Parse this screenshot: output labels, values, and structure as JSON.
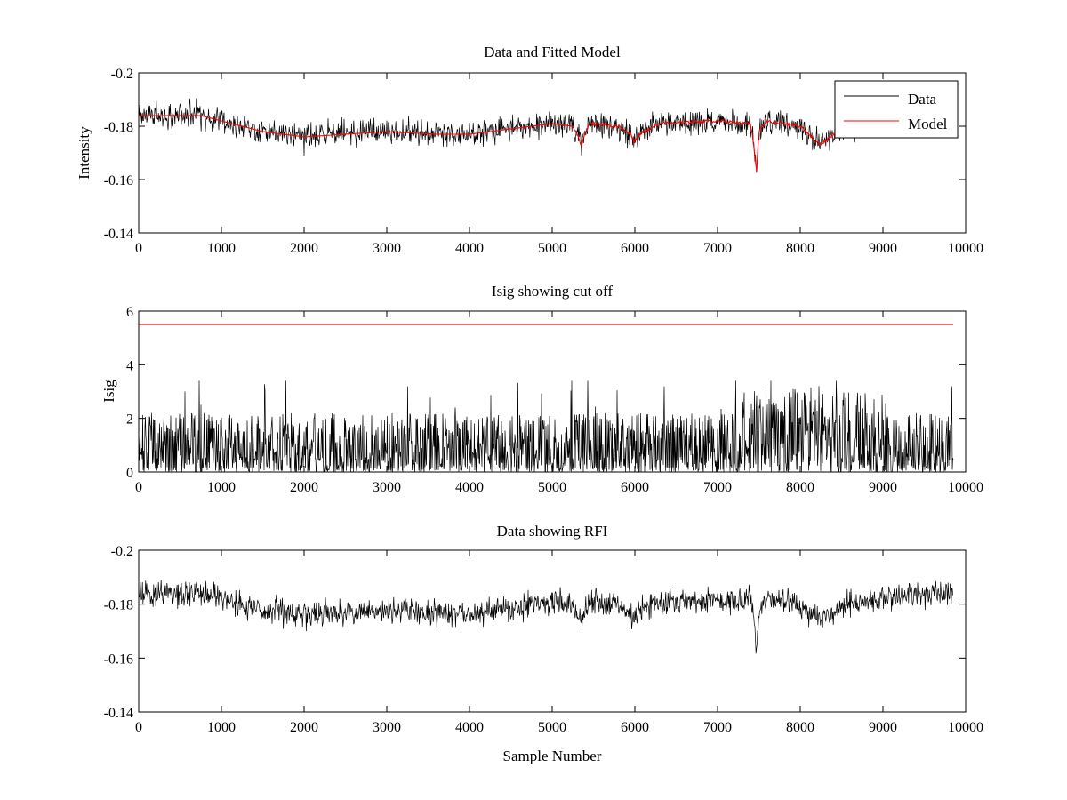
{
  "colors": {
    "data": "#000000",
    "model": "#ff0000",
    "background": "#ffffff",
    "axis": "#000000"
  },
  "chart_data": [
    {
      "type": "line",
      "title": "Data and Fitted Model",
      "xlabel": "",
      "ylabel": "Intensity",
      "xlim": [
        0,
        10000
      ],
      "ylim": [
        -0.2,
        -0.14
      ],
      "y_reversed": true,
      "xticks": [
        "0",
        "1000",
        "2000",
        "3000",
        "4000",
        "5000",
        "6000",
        "7000",
        "8000",
        "9000",
        "10000"
      ],
      "yticks": [
        "-0.14",
        "-0.16",
        "-0.18",
        "-0.2"
      ],
      "grid": false,
      "legend": {
        "placement": "top-right",
        "entries": [
          "Data",
          "Model"
        ]
      },
      "series": [
        {
          "name": "Data",
          "kind": "noisy",
          "noise_halfwidth": 0.0045,
          "x": [
            0,
            300,
            750,
            1000,
            1500,
            2000,
            2500,
            3000,
            3600,
            4000,
            4500,
            5000,
            5250,
            5320,
            5350,
            5380,
            5450,
            5800,
            5950,
            5990,
            6050,
            6300,
            7000,
            7400,
            7450,
            7470,
            7500,
            7600,
            8000,
            8100,
            8200,
            8250,
            8400,
            8600,
            9000,
            9500,
            9850
          ],
          "y": [
            -0.184,
            -0.184,
            -0.184,
            -0.182,
            -0.178,
            -0.176,
            -0.177,
            -0.178,
            -0.177,
            -0.177,
            -0.179,
            -0.181,
            -0.18,
            -0.176,
            -0.172,
            -0.176,
            -0.181,
            -0.18,
            -0.177,
            -0.174,
            -0.177,
            -0.181,
            -0.182,
            -0.181,
            -0.17,
            -0.162,
            -0.178,
            -0.182,
            -0.18,
            -0.177,
            -0.174,
            -0.173,
            -0.177,
            -0.18,
            -0.182,
            -0.184,
            -0.184
          ]
        },
        {
          "name": "Model",
          "kind": "smooth",
          "x": [
            0,
            300,
            750,
            1000,
            1500,
            2000,
            2500,
            3000,
            3600,
            4000,
            4500,
            5000,
            5250,
            5320,
            5350,
            5380,
            5450,
            5800,
            5950,
            5990,
            6050,
            6300,
            7000,
            7400,
            7450,
            7470,
            7500,
            7600,
            8000,
            8100,
            8200,
            8250,
            8400,
            8600,
            9000,
            9500,
            9850
          ],
          "y": [
            -0.184,
            -0.184,
            -0.184,
            -0.182,
            -0.178,
            -0.176,
            -0.177,
            -0.178,
            -0.177,
            -0.177,
            -0.179,
            -0.181,
            -0.18,
            -0.176,
            -0.172,
            -0.176,
            -0.181,
            -0.18,
            -0.177,
            -0.174,
            -0.177,
            -0.181,
            -0.182,
            -0.181,
            -0.17,
            -0.162,
            -0.178,
            -0.182,
            -0.18,
            -0.177,
            -0.174,
            -0.173,
            -0.177,
            -0.18,
            -0.182,
            -0.184,
            -0.184
          ]
        }
      ]
    },
    {
      "type": "line",
      "title": "Isig showing cut off",
      "xlabel": "",
      "ylabel": "Isig",
      "xlim": [
        0,
        10000
      ],
      "ylim": [
        0,
        6
      ],
      "y_reversed": false,
      "xticks": [
        "0",
        "1000",
        "2000",
        "3000",
        "4000",
        "5000",
        "6000",
        "7000",
        "8000",
        "9000",
        "10000"
      ],
      "yticks": [
        "0",
        "2",
        "4",
        "6"
      ],
      "grid": false,
      "series": [
        {
          "kind": "spikes",
          "x": [
            0,
            9850
          ],
          "typical_max": 2.2,
          "peak_max": 3.4
        },
        {
          "kind": "hline",
          "x": [
            0,
            9850
          ],
          "y": [
            5.5,
            5.5
          ]
        }
      ]
    },
    {
      "type": "line",
      "title": "Data showing RFI",
      "xlabel": "Sample Number",
      "ylabel": "",
      "xlim": [
        0,
        10000
      ],
      "ylim": [
        -0.2,
        -0.14
      ],
      "y_reversed": true,
      "xticks": [
        "0",
        "1000",
        "2000",
        "3000",
        "4000",
        "5000",
        "6000",
        "7000",
        "8000",
        "9000",
        "10000"
      ],
      "yticks": [
        "-0.14",
        "-0.16",
        "-0.18",
        "-0.2"
      ],
      "grid": false,
      "series": [
        {
          "kind": "noisy",
          "noise_halfwidth": 0.0045,
          "x": [
            0,
            300,
            750,
            1000,
            1500,
            2000,
            2500,
            3000,
            3600,
            4000,
            4500,
            5000,
            5250,
            5320,
            5350,
            5380,
            5450,
            5800,
            5950,
            5990,
            6050,
            6300,
            7000,
            7400,
            7450,
            7470,
            7500,
            7600,
            8000,
            8100,
            8200,
            8250,
            8400,
            8600,
            9000,
            9500,
            9850
          ],
          "y": [
            -0.184,
            -0.184,
            -0.184,
            -0.182,
            -0.178,
            -0.176,
            -0.177,
            -0.178,
            -0.177,
            -0.177,
            -0.179,
            -0.181,
            -0.18,
            -0.176,
            -0.172,
            -0.176,
            -0.181,
            -0.18,
            -0.177,
            -0.174,
            -0.177,
            -0.181,
            -0.182,
            -0.181,
            -0.17,
            -0.162,
            -0.178,
            -0.182,
            -0.18,
            -0.177,
            -0.174,
            -0.173,
            -0.177,
            -0.18,
            -0.182,
            -0.184,
            -0.184
          ]
        }
      ]
    }
  ]
}
